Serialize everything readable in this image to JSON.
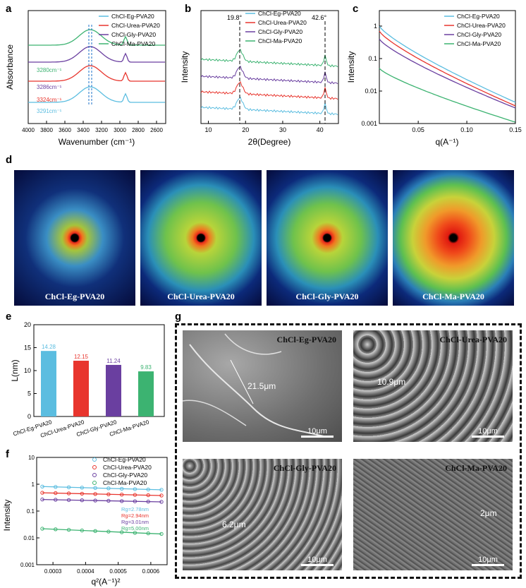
{
  "panel_labels": {
    "a": "a",
    "b": "b",
    "c": "c",
    "d": "d",
    "e": "e",
    "f": "f",
    "g": "g"
  },
  "colors": {
    "eg": "#5bbde0",
    "urea": "#e8352d",
    "gly": "#6a3fa0",
    "ma": "#3cb371"
  },
  "chart_data": [
    {
      "id": "a",
      "type": "line",
      "xlabel": "Wavenumber (cm⁻¹)",
      "ylabel": "Absorbance",
      "xlim": [
        4000,
        2500
      ],
      "ticks": [
        "4000",
        "3800",
        "3600",
        "3400",
        "3200",
        "3000",
        "2800",
        "2600"
      ],
      "series": [
        {
          "name": "ChCl-Eg-PVA20",
          "annotation": "3291cm⁻¹",
          "offset": 0.0
        },
        {
          "name": "ChCl-Urea-PVA20",
          "annotation": "3324cm⁻¹",
          "offset": 1.0
        },
        {
          "name": "ChCl-Gly-PVA20",
          "annotation": "3286cm⁻¹",
          "offset": 2.0
        },
        {
          "name": "ChCl-Ma-PVA20",
          "annotation": "3280cm⁻¹",
          "offset": 3.0
        }
      ],
      "legend": "top-right"
    },
    {
      "id": "b",
      "type": "line",
      "xlabel": "2θ(Degree)",
      "ylabel": "Intensity",
      "xlim": [
        8,
        45
      ],
      "ticks": [
        "10",
        "20",
        "30",
        "40"
      ],
      "peaks": [
        "19.8°",
        "42.6°"
      ],
      "series": [
        {
          "name": "ChCl-Eg-PVA20"
        },
        {
          "name": "ChCl-Urea-PVA20"
        },
        {
          "name": "ChCl-Gly-PVA20"
        },
        {
          "name": "ChCl-Ma-PVA20"
        }
      ],
      "legend": "top-right"
    },
    {
      "id": "c",
      "type": "line",
      "xlabel": "q(A⁻¹)",
      "ylabel": "Intensity",
      "xlim": [
        0.01,
        0.15
      ],
      "ylim": [
        0.001,
        3
      ],
      "yscale": "log",
      "xticks": [
        "0.05",
        "0.10",
        "0.15"
      ],
      "yticks": [
        "1",
        "0.1",
        "0.01",
        "0.001"
      ],
      "series": [
        {
          "name": "ChCl-Eg-PVA20",
          "start": 1.0,
          "end": 0.0045
        },
        {
          "name": "ChCl-Urea-PVA20",
          "start": 0.7,
          "end": 0.0035
        },
        {
          "name": "ChCl-Gly-PVA20",
          "start": 0.4,
          "end": 0.003
        },
        {
          "name": "ChCl-Ma-PVA20",
          "start": 0.05,
          "end": 0.0011
        }
      ],
      "legend": "top-right"
    },
    {
      "id": "e",
      "type": "bar",
      "ylabel": "L(nm)",
      "ylim": [
        0,
        20
      ],
      "yticks": [
        "0",
        "5",
        "10",
        "15",
        "20"
      ],
      "categories": [
        "ChCl-Eg-PVA20",
        "ChCl-Urea-PVA20",
        "ChCl-Gly-PVA20",
        "ChCl-Ma-PVA20"
      ],
      "values": [
        14.28,
        12.15,
        11.24,
        9.83
      ],
      "labels": [
        "14.28",
        "12.15",
        "11.24",
        "9.83"
      ]
    },
    {
      "id": "f",
      "type": "scatter",
      "xlabel": "q²(A⁻¹)²",
      "ylabel": "Intensity",
      "yscale": "log",
      "ylim": [
        0.001,
        10
      ],
      "xlim": [
        0.00025,
        0.00065
      ],
      "xticks": [
        "0.0003",
        "0.0004",
        "0.0005",
        "0.0006"
      ],
      "yticks": [
        "10",
        "1",
        "0.1",
        "0.01",
        "0.001"
      ],
      "series": [
        {
          "name": "ChCl-Eg-PVA20",
          "rg": "Rg=2.78nm",
          "start": 0.82,
          "end": 0.62
        },
        {
          "name": "ChCl-Urea-PVA20",
          "rg": "Rg=2.94nm",
          "start": 0.48,
          "end": 0.38
        },
        {
          "name": "ChCl-Gly-PVA20",
          "rg": "Rg=3.01nm",
          "start": 0.27,
          "end": 0.22
        },
        {
          "name": "ChCl-Ma-PVA20",
          "rg": "Rg=5.00nm",
          "start": 0.022,
          "end": 0.014
        }
      ],
      "legend": "top-right"
    }
  ],
  "saxs": [
    {
      "label": "ChCl-Eg-PVA20"
    },
    {
      "label": "ChCl-Urea-PVA20"
    },
    {
      "label": "ChCl-Gly-PVA20"
    },
    {
      "label": "ChCl-Ma-PVA20"
    }
  ],
  "sem": [
    {
      "title": "ChCl-Eg-PVA20",
      "dimension": "21.5μm",
      "scale": "10μm"
    },
    {
      "title": "ChCl-Urea-PVA20",
      "dimension": "10.9μm",
      "scale": "10μm"
    },
    {
      "title": "ChCl-Gly-PVA20",
      "dimension": "6.2μm",
      "scale": "10μm"
    },
    {
      "title": "ChCl-Ma-PVA20",
      "dimension": "2μm",
      "scale": "10μm"
    }
  ]
}
